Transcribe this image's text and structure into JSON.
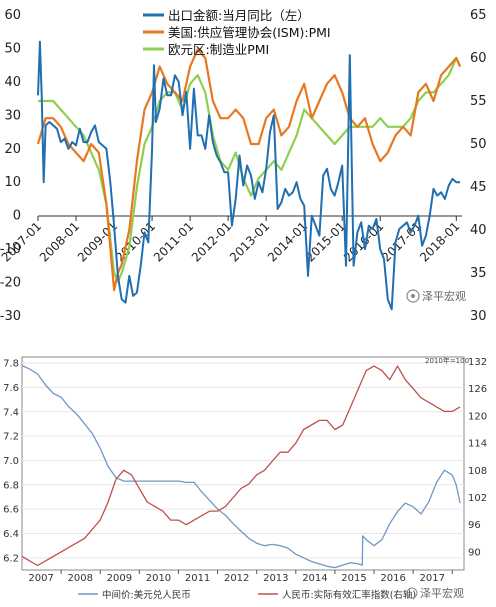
{
  "chart_data": [
    {
      "type": "line",
      "legend": [
        "出口金额:当月同比（左）",
        "美国:供应管理协会(ISM):PMI",
        "欧元区:制造业PMI"
      ],
      "x_tick_labels": [
        "2007-01",
        "2008-01",
        "2009-01",
        "2010-01",
        "2011-01",
        "2012-01",
        "2013-01",
        "2014-01",
        "2015-01",
        "2016-01",
        "2017-01",
        "2018-01"
      ],
      "y_left_ticks": [
        "60",
        "50",
        "40",
        "30",
        "20",
        "10",
        "0",
        "-10",
        "-20",
        "-30"
      ],
      "y_right_ticks": [
        "65",
        "60",
        "55",
        "50",
        "45",
        "40",
        "35",
        "30"
      ],
      "ylim_left": [
        -30,
        60
      ],
      "ylim_right": [
        30,
        65
      ],
      "colors": {
        "export": "#1f6fb2",
        "ism": "#e87722",
        "eurozone": "#8fcf4f"
      },
      "series": [
        {
          "name": "出口金额:当月同比（左）",
          "axis": "left",
          "color": "#1f6fb2",
          "x": [
            2007.0,
            2007.05,
            2007.1,
            2007.15,
            2007.2,
            2007.3,
            2007.4,
            2007.5,
            2007.6,
            2007.7,
            2007.8,
            2007.9,
            2008.0,
            2008.1,
            2008.2,
            2008.3,
            2008.4,
            2008.5,
            2008.6,
            2008.7,
            2008.8,
            2008.9,
            2009.0,
            2009.1,
            2009.2,
            2009.3,
            2009.4,
            2009.5,
            2009.6,
            2009.7,
            2009.8,
            2009.9,
            2010.0,
            2010.05,
            2010.1,
            2010.2,
            2010.3,
            2010.4,
            2010.5,
            2010.6,
            2010.7,
            2010.8,
            2010.9,
            2011.0,
            2011.1,
            2011.2,
            2011.3,
            2011.4,
            2011.5,
            2011.6,
            2011.7,
            2011.8,
            2011.9,
            2012.0,
            2012.1,
            2012.2,
            2012.3,
            2012.4,
            2012.5,
            2012.6,
            2012.7,
            2012.8,
            2012.9,
            2013.0,
            2013.1,
            2013.2,
            2013.3,
            2013.4,
            2013.5,
            2013.6,
            2013.7,
            2013.8,
            2013.9,
            2014.0,
            2014.1,
            2014.2,
            2014.3,
            2014.4,
            2014.5,
            2014.6,
            2014.7,
            2014.8,
            2014.9,
            2015.0,
            2015.1,
            2015.2,
            2015.3,
            2015.4,
            2015.5,
            2015.6,
            2015.7,
            2015.8,
            2015.9,
            2016.0,
            2016.1,
            2016.2,
            2016.3,
            2016.4,
            2016.5,
            2016.6,
            2016.7,
            2016.8,
            2016.9,
            2017.0,
            2017.1,
            2017.2,
            2017.3,
            2017.4,
            2017.5,
            2017.6,
            2017.7,
            2017.8,
            2017.9,
            2018.0,
            2018.1
          ],
          "y": [
            36,
            52,
            35,
            10,
            27,
            28,
            27,
            26,
            22,
            23,
            20,
            22,
            21,
            26,
            22,
            22,
            25,
            27,
            22,
            21,
            20,
            10,
            -3,
            -18,
            -25,
            -26,
            -18,
            -24,
            -23,
            -15,
            -5,
            -8,
            20,
            45,
            28,
            32,
            41,
            36,
            36,
            42,
            40,
            30,
            37,
            20,
            38,
            24,
            24,
            20,
            30,
            22,
            18,
            16,
            13,
            13,
            -3,
            5,
            18,
            9,
            15,
            12,
            5,
            10,
            7,
            14,
            25,
            30,
            2,
            4,
            8,
            6,
            7,
            10,
            5,
            3,
            -18,
            0,
            -3,
            -6,
            12,
            14,
            8,
            6,
            10,
            15,
            -15,
            48,
            -15,
            -5,
            -2,
            -10,
            -3,
            -4,
            -1,
            -10,
            -13,
            -25,
            -28,
            -8,
            -4,
            -3,
            -2,
            -5,
            -3,
            0,
            -9,
            -6,
            0,
            8,
            6,
            7,
            5,
            9,
            11,
            10,
            10
          ]
        },
        {
          "name": "美国:供应管理协会(ISM):PMI",
          "axis": "right",
          "color": "#e87722",
          "x": [
            2007.0,
            2007.2,
            2007.4,
            2007.6,
            2007.8,
            2008.0,
            2008.2,
            2008.4,
            2008.6,
            2008.8,
            2009.0,
            2009.1,
            2009.2,
            2009.4,
            2009.6,
            2009.8,
            2010.0,
            2010.2,
            2010.4,
            2010.6,
            2010.8,
            2011.0,
            2011.2,
            2011.4,
            2011.6,
            2011.8,
            2012.0,
            2012.2,
            2012.4,
            2012.6,
            2012.8,
            2013.0,
            2013.2,
            2013.4,
            2013.6,
            2013.8,
            2014.0,
            2014.2,
            2014.4,
            2014.6,
            2014.8,
            2015.0,
            2015.2,
            2015.4,
            2015.6,
            2015.8,
            2016.0,
            2016.2,
            2016.4,
            2016.6,
            2016.8,
            2017.0,
            2017.2,
            2017.4,
            2017.6,
            2017.8,
            2018.0,
            2018.1
          ],
          "y": [
            50,
            53,
            53,
            52,
            50,
            49,
            48,
            50,
            49,
            43,
            33,
            35,
            36,
            40,
            48,
            54,
            56,
            59,
            57,
            56,
            55,
            59,
            61,
            60,
            55,
            53,
            53,
            54,
            53,
            50,
            50,
            53,
            54,
            51,
            52,
            55,
            57,
            53,
            55,
            57,
            58,
            56,
            53,
            52,
            53,
            50,
            48,
            49,
            51,
            52,
            51,
            56,
            57,
            55,
            58,
            59,
            60,
            59
          ]
        },
        {
          "name": "欧元区:制造业PMI",
          "axis": "right",
          "color": "#8fcf4f",
          "x": [
            2007.0,
            2007.2,
            2007.4,
            2007.6,
            2007.8,
            2008.0,
            2008.2,
            2008.4,
            2008.6,
            2008.8,
            2009.0,
            2009.1,
            2009.2,
            2009.4,
            2009.6,
            2009.8,
            2010.0,
            2010.2,
            2010.4,
            2010.6,
            2010.8,
            2011.0,
            2011.2,
            2011.4,
            2011.6,
            2011.8,
            2012.0,
            2012.2,
            2012.4,
            2012.6,
            2012.8,
            2013.0,
            2013.2,
            2013.4,
            2013.6,
            2013.8,
            2014.0,
            2014.2,
            2014.4,
            2014.6,
            2014.8,
            2015.0,
            2015.2,
            2015.4,
            2015.6,
            2015.8,
            2016.0,
            2016.2,
            2016.4,
            2016.6,
            2016.8,
            2017.0,
            2017.2,
            2017.4,
            2017.6,
            2017.8,
            2018.0,
            2018.1
          ],
          "y": [
            55,
            55,
            55,
            54,
            53,
            52,
            51,
            49,
            47,
            43,
            35,
            34,
            35,
            38,
            45,
            50,
            52,
            55,
            56,
            56,
            54,
            57,
            58,
            56,
            51,
            48,
            47,
            49,
            46,
            44,
            46,
            47,
            48,
            47,
            49,
            51,
            54,
            53,
            52,
            51,
            50,
            51,
            52,
            52,
            52,
            52,
            53,
            52,
            52,
            52,
            53,
            55,
            56,
            56,
            57,
            58,
            60,
            59
          ]
        }
      ]
    },
    {
      "type": "line",
      "annotation": "2010年=100",
      "legend": [
        "中间价:美元兑人民币",
        "人民币:实际有效汇率指数(右轴)"
      ],
      "x_tick_labels": [
        "2007",
        "2008",
        "2009",
        "2010",
        "2011",
        "2012",
        "2013",
        "2014",
        "2015",
        "2016",
        "2017"
      ],
      "y_left_ticks": [
        "7.8",
        "7.6",
        "7.4",
        "7.2",
        "7.0",
        "6.8",
        "6.6",
        "6.4",
        "6.2"
      ],
      "y_right_ticks": [
        "132",
        "126",
        "120",
        "114",
        "108",
        "102",
        "96",
        "90"
      ],
      "ylim_left": [
        6.1,
        7.85
      ],
      "ylim_right": [
        86,
        133
      ],
      "colors": {
        "usdcny": "#6f97c7",
        "reer": "#c0504d"
      },
      "series": [
        {
          "name": "中间价:美元兑人民币",
          "axis": "left",
          "color": "#6f97c7",
          "x": [
            2006.0,
            2006.2,
            2006.4,
            2006.6,
            2006.8,
            2007.0,
            2007.2,
            2007.4,
            2007.6,
            2007.8,
            2008.0,
            2008.2,
            2008.4,
            2008.6,
            2008.8,
            2009.0,
            2009.2,
            2009.4,
            2009.6,
            2009.8,
            2010.0,
            2010.2,
            2010.4,
            2010.6,
            2010.8,
            2011.0,
            2011.2,
            2011.4,
            2011.6,
            2011.8,
            2012.0,
            2012.2,
            2012.4,
            2012.6,
            2012.8,
            2013.0,
            2013.2,
            2013.4,
            2013.6,
            2013.8,
            2014.0,
            2014.2,
            2014.4,
            2014.6,
            2014.7,
            2014.71,
            2014.8,
            2015.0,
            2015.2,
            2015.4,
            2015.6,
            2015.8,
            2016.0,
            2016.2,
            2016.4,
            2016.6,
            2016.8,
            2017.0,
            2017.1,
            2017.2
          ],
          "y": [
            7.78,
            7.75,
            7.71,
            7.62,
            7.55,
            7.52,
            7.44,
            7.38,
            7.3,
            7.22,
            7.1,
            6.95,
            6.86,
            6.83,
            6.83,
            6.83,
            6.83,
            6.83,
            6.83,
            6.83,
            6.83,
            6.82,
            6.82,
            6.74,
            6.67,
            6.6,
            6.55,
            6.48,
            6.42,
            6.36,
            6.32,
            6.3,
            6.31,
            6.3,
            6.28,
            6.23,
            6.2,
            6.17,
            6.15,
            6.13,
            6.12,
            6.14,
            6.16,
            6.15,
            6.14,
            6.38,
            6.35,
            6.3,
            6.35,
            6.48,
            6.58,
            6.65,
            6.62,
            6.56,
            6.66,
            6.82,
            6.92,
            6.88,
            6.8,
            6.65
          ]
        },
        {
          "name": "人民币:实际有效汇率指数(右轴)",
          "axis": "right",
          "color": "#c0504d",
          "x": [
            2006.0,
            2006.2,
            2006.4,
            2006.6,
            2006.8,
            2007.0,
            2007.2,
            2007.4,
            2007.6,
            2007.8,
            2008.0,
            2008.2,
            2008.4,
            2008.6,
            2008.8,
            2009.0,
            2009.2,
            2009.4,
            2009.6,
            2009.8,
            2010.0,
            2010.2,
            2010.4,
            2010.6,
            2010.8,
            2011.0,
            2011.2,
            2011.4,
            2011.6,
            2011.8,
            2012.0,
            2012.2,
            2012.4,
            2012.6,
            2012.8,
            2013.0,
            2013.2,
            2013.4,
            2013.6,
            2013.8,
            2014.0,
            2014.2,
            2014.4,
            2014.6,
            2014.8,
            2015.0,
            2015.2,
            2015.4,
            2015.6,
            2015.8,
            2016.0,
            2016.2,
            2016.4,
            2016.6,
            2016.8,
            2017.0,
            2017.2
          ],
          "y": [
            89,
            88,
            87,
            88,
            89,
            90,
            91,
            92,
            93,
            95,
            97,
            101,
            106,
            108,
            107,
            104,
            101,
            100,
            99,
            97,
            97,
            96,
            97,
            98,
            99,
            99,
            100,
            102,
            104,
            105,
            107,
            108,
            110,
            112,
            112,
            114,
            117,
            118,
            119,
            119,
            117,
            118,
            122,
            126,
            130,
            131,
            130,
            128,
            131,
            128,
            126,
            124,
            123,
            122,
            121,
            121,
            122
          ]
        }
      ]
    }
  ],
  "watermark": "泽平宏观"
}
